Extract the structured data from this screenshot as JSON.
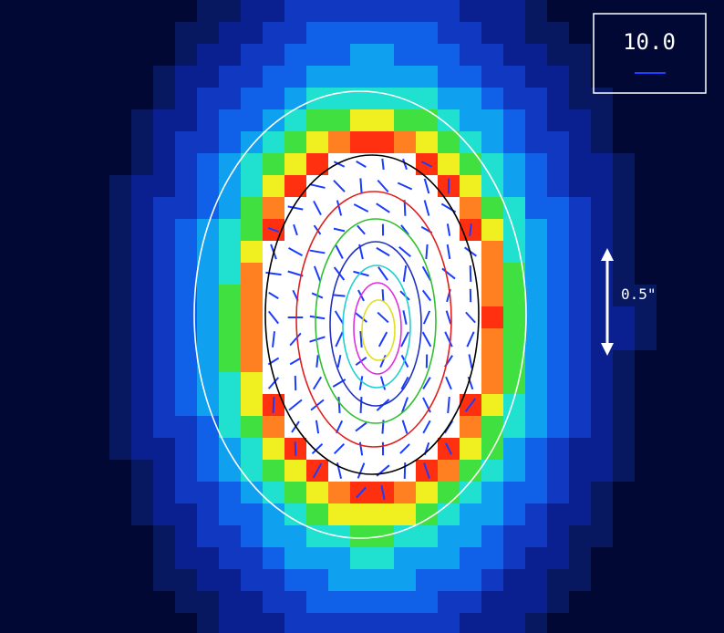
{
  "legend": {
    "label": "10.0"
  },
  "scale_bar": {
    "label": "0.5\""
  }
}
